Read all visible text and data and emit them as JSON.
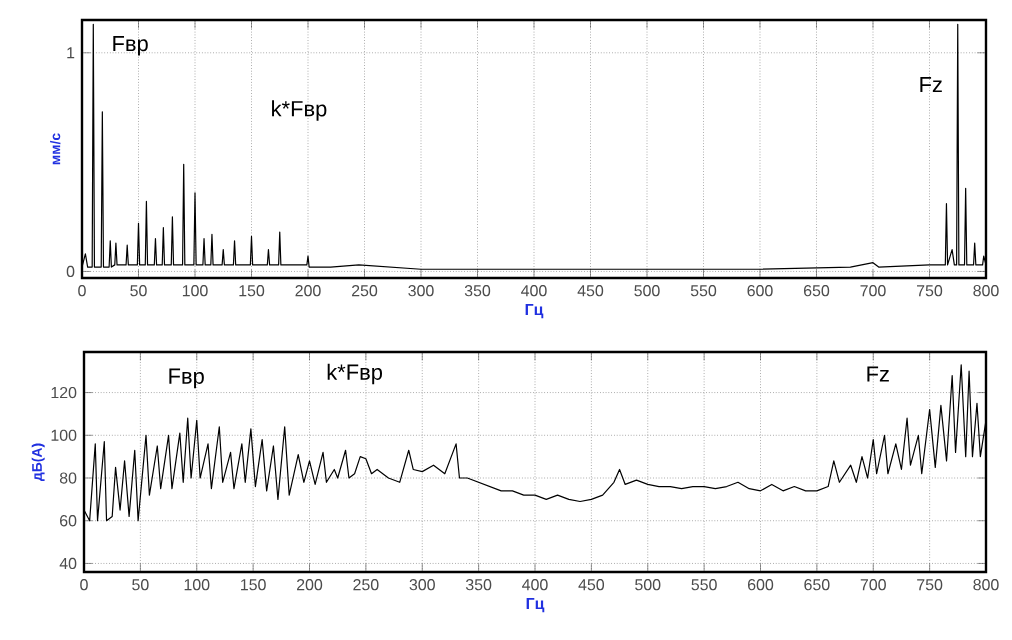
{
  "chart_data": [
    {
      "type": "line",
      "xlabel": "Гц",
      "ylabel": "мм/с",
      "color": "#000000",
      "grid": true,
      "x": [
        0,
        3,
        5,
        9,
        10,
        11,
        17,
        18,
        19,
        24,
        25,
        26,
        29,
        30,
        31,
        39,
        40,
        41,
        49,
        50,
        51,
        56,
        57,
        58,
        64,
        65,
        66,
        71,
        72,
        73,
        79,
        80,
        81,
        89,
        90,
        91,
        99,
        100,
        101,
        107,
        108,
        109,
        114,
        115,
        116,
        124,
        125,
        126,
        134,
        135,
        136,
        149,
        150,
        151,
        164,
        165,
        166,
        174,
        175,
        176,
        199,
        200,
        201,
        220,
        245,
        300,
        400,
        500,
        600,
        680,
        700,
        705,
        750,
        764,
        765,
        766,
        770,
        772,
        774,
        775,
        776,
        781,
        782,
        783,
        789,
        790,
        791,
        797,
        798,
        800
      ],
      "values": [
        0.02,
        0.08,
        0.02,
        0.02,
        1.13,
        0.02,
        0.02,
        0.73,
        0.02,
        0.02,
        0.14,
        0.02,
        0.03,
        0.13,
        0.03,
        0.03,
        0.12,
        0.03,
        0.03,
        0.22,
        0.03,
        0.03,
        0.32,
        0.03,
        0.03,
        0.15,
        0.03,
        0.03,
        0.2,
        0.03,
        0.03,
        0.25,
        0.03,
        0.03,
        0.49,
        0.03,
        0.03,
        0.36,
        0.03,
        0.03,
        0.15,
        0.03,
        0.03,
        0.17,
        0.03,
        0.03,
        0.1,
        0.03,
        0.03,
        0.14,
        0.03,
        0.03,
        0.16,
        0.03,
        0.03,
        0.1,
        0.03,
        0.03,
        0.18,
        0.03,
        0.03,
        0.07,
        0.02,
        0.02,
        0.03,
        0.01,
        0.01,
        0.01,
        0.01,
        0.02,
        0.04,
        0.02,
        0.03,
        0.03,
        0.31,
        0.03,
        0.1,
        0.03,
        0.03,
        1.13,
        0.03,
        0.03,
        0.38,
        0.03,
        0.03,
        0.13,
        0.03,
        0.03,
        0.07,
        0.03
      ],
      "xlim": [
        0,
        800
      ],
      "xticks": [
        0,
        50,
        100,
        150,
        200,
        250,
        300,
        350,
        400,
        450,
        500,
        550,
        600,
        650,
        700,
        750,
        800
      ],
      "ylim": [
        -0.03,
        1.15
      ],
      "yticks": [
        0,
        1
      ],
      "annotations": [
        "Fвр",
        "k*Fвр",
        "Fz"
      ]
    },
    {
      "type": "line",
      "xlabel": "Гц",
      "ylabel": "дБ(А)",
      "color": "#000000",
      "grid": true,
      "x": [
        0,
        5,
        10,
        12,
        18,
        20,
        25,
        28,
        32,
        36,
        40,
        45,
        48,
        55,
        58,
        65,
        68,
        75,
        78,
        85,
        88,
        92,
        95,
        100,
        103,
        110,
        113,
        120,
        123,
        130,
        133,
        140,
        143,
        148,
        152,
        158,
        162,
        168,
        172,
        178,
        182,
        190,
        195,
        200,
        205,
        212,
        215,
        222,
        225,
        232,
        235,
        240,
        245,
        250,
        255,
        260,
        270,
        280,
        288,
        292,
        300,
        310,
        320,
        330,
        333,
        340,
        350,
        360,
        370,
        380,
        390,
        400,
        410,
        420,
        430,
        440,
        450,
        460,
        470,
        475,
        480,
        490,
        500,
        510,
        520,
        530,
        540,
        550,
        560,
        570,
        580,
        590,
        600,
        610,
        620,
        630,
        640,
        650,
        660,
        665,
        670,
        680,
        685,
        690,
        695,
        700,
        703,
        710,
        713,
        720,
        725,
        730,
        733,
        740,
        743,
        750,
        755,
        760,
        765,
        770,
        773,
        778,
        782,
        785,
        788,
        792,
        795,
        800
      ],
      "values": [
        65,
        60,
        96,
        60,
        97,
        60,
        62,
        85,
        65,
        88,
        62,
        93,
        60,
        100,
        72,
        95,
        75,
        100,
        75,
        101,
        78,
        108,
        80,
        107,
        80,
        96,
        75,
        104,
        78,
        92,
        75,
        96,
        78,
        103,
        76,
        98,
        74,
        95,
        70,
        104,
        72,
        91,
        78,
        88,
        77,
        92,
        78,
        84,
        80,
        93,
        80,
        82,
        90,
        89,
        82,
        84,
        80,
        78,
        93,
        84,
        83,
        86,
        82,
        96,
        80,
        80,
        78,
        76,
        74,
        74,
        72,
        72,
        70,
        72,
        70,
        69,
        70,
        72,
        78,
        84,
        77,
        79,
        77,
        76,
        76,
        75,
        76,
        76,
        75,
        76,
        78,
        75,
        74,
        77,
        74,
        76,
        74,
        74,
        76,
        88,
        78,
        86,
        78,
        90,
        80,
        98,
        82,
        100,
        82,
        96,
        84,
        108,
        86,
        100,
        82,
        112,
        85,
        114,
        88,
        128,
        92,
        133,
        90,
        130,
        90,
        115,
        90,
        107
      ],
      "xlim": [
        0,
        800
      ],
      "xticks": [
        0,
        50,
        100,
        150,
        200,
        250,
        300,
        350,
        400,
        450,
        500,
        550,
        600,
        650,
        700,
        750,
        800
      ],
      "ylim": [
        36,
        139
      ],
      "yticks": [
        40,
        60,
        80,
        100,
        120
      ],
      "annotations": [
        "Fвр",
        "k*Fвр",
        "Fz"
      ]
    }
  ]
}
